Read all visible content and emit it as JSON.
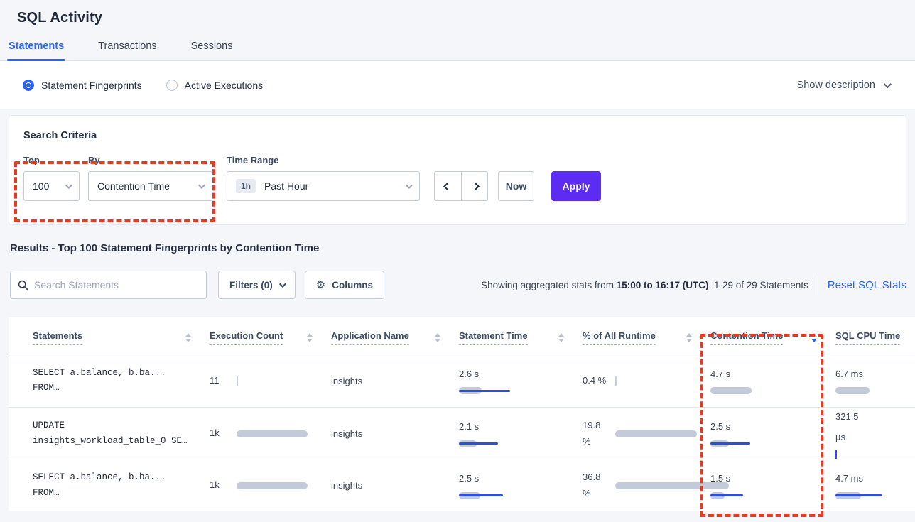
{
  "page": {
    "title": "SQL Activity"
  },
  "tabs": [
    {
      "label": "Statements",
      "active": true
    },
    {
      "label": "Transactions",
      "active": false
    },
    {
      "label": "Sessions",
      "active": false
    }
  ],
  "view_toggle": {
    "options": [
      {
        "label": "Statement Fingerprints",
        "selected": true
      },
      {
        "label": "Active Executions",
        "selected": false
      }
    ],
    "show_description_label": "Show description"
  },
  "search_criteria": {
    "heading": "Search Criteria",
    "top": {
      "label": "Top",
      "value": "100"
    },
    "by": {
      "label": "By",
      "value": "Contention Time"
    },
    "time_range": {
      "label": "Time Range",
      "badge": "1h",
      "value": "Past Hour"
    },
    "now_label": "Now",
    "apply_label": "Apply"
  },
  "results": {
    "heading": "Results - Top 100 Statement Fingerprints by Contention Time",
    "search_placeholder": "Search Statements",
    "filters_label": "Filters (0)",
    "columns_label": "Columns",
    "showing_prefix": "Showing aggregated stats from ",
    "showing_bold": "15:00 to 16:17 (UTC)",
    "showing_suffix": ", 1-29 of 29 Statements",
    "reset_label": "Reset SQL Stats"
  },
  "icons": {
    "search": "search-icon",
    "gear": "gear-icon",
    "chevron_down": "chevron-down-icon",
    "chevron_left": "chevron-left-icon",
    "chevron_right": "chevron-right-icon"
  },
  "colors": {
    "accent_blue": "#2a66f5",
    "apply_purple": "#5c2cf2",
    "annotation_red": "#e83a22",
    "bar_gray": "#c3cad9",
    "bar_blue": "#2d4fe0"
  },
  "table": {
    "headers": [
      {
        "label": "Statements",
        "sorted": null
      },
      {
        "label": "Execution Count",
        "sorted": null
      },
      {
        "label": "Application Name",
        "sorted": null
      },
      {
        "label": "Statement Time",
        "sorted": null
      },
      {
        "label": "% of All Runtime",
        "sorted": null
      },
      {
        "label": "Contention Time",
        "sorted": "desc"
      },
      {
        "label": "SQL CPU Time",
        "sorted": null,
        "hide_sort_icon": true
      }
    ],
    "rows": [
      {
        "statement_lines": [
          "SELECT a.balance, b.ba...",
          "FROM…"
        ],
        "execution_count": {
          "lines": [
            "11"
          ],
          "gray": 0,
          "blue": 0,
          "tick": "gray"
        },
        "application": "insights",
        "statement_time": {
          "lines": [
            "2.6 s"
          ],
          "gray": 32,
          "blue": 72,
          "tick": null
        },
        "pct_runtime": {
          "lines": [
            "0.4 %"
          ],
          "gray": 0,
          "blue": 0,
          "tick": "gray"
        },
        "contention_time": {
          "lines": [
            "4.7 s"
          ],
          "gray": 58,
          "blue": 0,
          "tick": null
        },
        "sql_cpu_time": {
          "lines": [
            "6.7 ms"
          ],
          "gray": 48,
          "blue": 0,
          "tick": null
        }
      },
      {
        "statement_lines": [
          "UPDATE",
          "insights_workload_table_0 SE…"
        ],
        "execution_count": {
          "lines": [
            "1k"
          ],
          "gray": 100,
          "blue": 0,
          "tick": null
        },
        "application": "insights",
        "statement_time": {
          "lines": [
            "2.1 s"
          ],
          "gray": 25,
          "blue": 55,
          "tick": null
        },
        "pct_runtime": {
          "lines": [
            "19.8",
            "%"
          ],
          "gray": 115,
          "blue": 0,
          "tick": null
        },
        "contention_time": {
          "lines": [
            "2.5 s"
          ],
          "gray": 26,
          "blue": 56,
          "tick": null
        },
        "sql_cpu_time": {
          "lines": [
            "321.5",
            "µs"
          ],
          "gray": 0,
          "blue": 0,
          "tick": "blue"
        }
      },
      {
        "statement_lines": [
          "SELECT a.balance, b.ba...",
          "FROM…"
        ],
        "execution_count": {
          "lines": [
            "1k"
          ],
          "gray": 100,
          "blue": 0,
          "tick": null
        },
        "application": "insights",
        "statement_time": {
          "lines": [
            "2.5 s"
          ],
          "gray": 30,
          "blue": 62,
          "tick": null
        },
        "pct_runtime": {
          "lines": [
            "36.8",
            "%"
          ],
          "gray": 160,
          "blue": 0,
          "tick": null
        },
        "contention_time": {
          "lines": [
            "1.5 s"
          ],
          "gray": 20,
          "blue": 46,
          "tick": null
        },
        "sql_cpu_time": {
          "lines": [
            "4.7 ms"
          ],
          "gray": 36,
          "blue": 66,
          "tick": null
        }
      }
    ]
  }
}
